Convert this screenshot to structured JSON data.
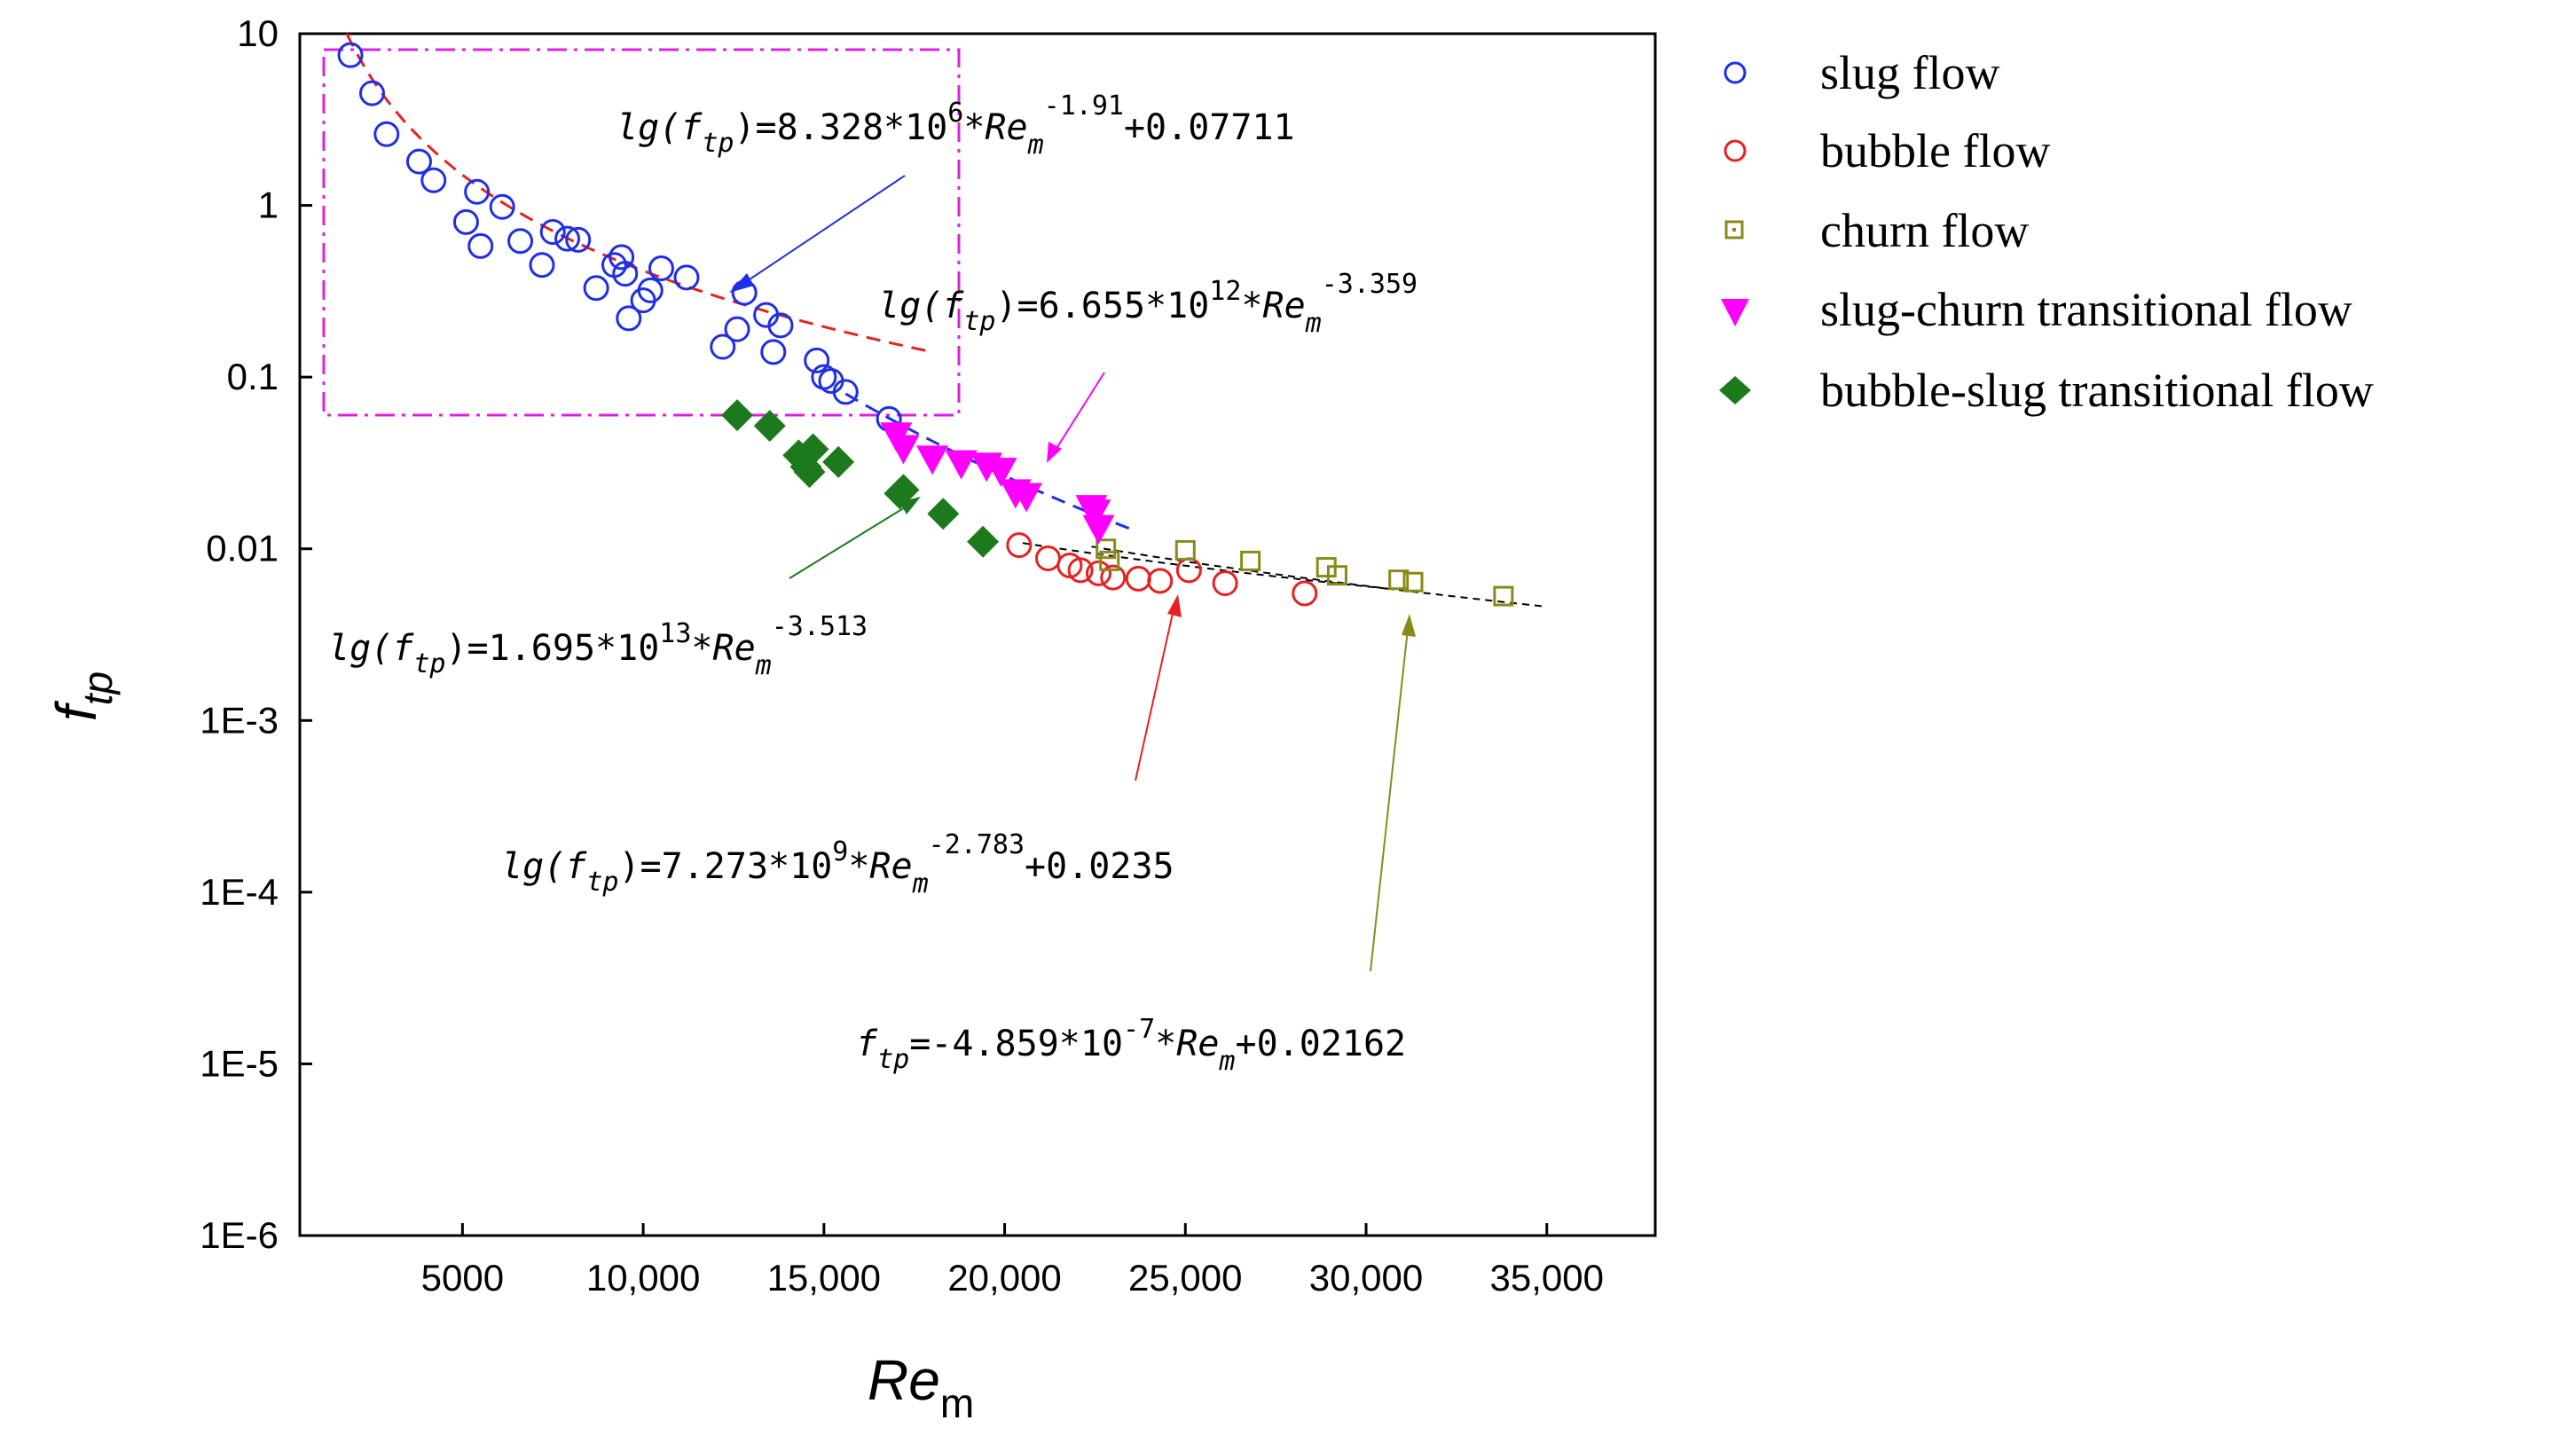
{
  "chart_data": {
    "type": "scatter",
    "title": "",
    "xlabel": {
      "main": "Re",
      "sub": "m"
    },
    "ylabel": {
      "main": "f",
      "sub": "tp"
    },
    "xlim": [
      500,
      38000
    ],
    "ylim": [
      1e-06,
      10
    ],
    "yscale": "log",
    "x_ticks": [
      5000,
      10000,
      15000,
      20000,
      25000,
      30000,
      35000
    ],
    "x_tick_labels": [
      "5000",
      "10,000",
      "15,000",
      "20,000",
      "25,000",
      "30,000",
      "35,000"
    ],
    "y_ticks": [
      10,
      1,
      0.1,
      0.01,
      0.001,
      0.0001,
      1e-05,
      1e-06
    ],
    "y_tick_labels": [
      "10",
      "1",
      "0.1",
      "0.01",
      "1E-3",
      "1E-4",
      "1E-5",
      "1E-6"
    ],
    "legend_position": "right outside",
    "series": [
      {
        "name": "slug flow",
        "marker": "circle-open",
        "color": "#1f2ee8",
        "points": [
          [
            1900,
            7.5
          ],
          [
            2500,
            4.5
          ],
          [
            2900,
            2.6
          ],
          [
            3800,
            1.8
          ],
          [
            4200,
            1.4
          ],
          [
            5400,
            1.2
          ],
          [
            5500,
            0.58
          ],
          [
            5100,
            0.8
          ],
          [
            6100,
            0.98
          ],
          [
            6600,
            0.62
          ],
          [
            7200,
            0.45
          ],
          [
            7500,
            0.7
          ],
          [
            7900,
            0.64
          ],
          [
            8200,
            0.63
          ],
          [
            8700,
            0.33
          ],
          [
            9200,
            0.45
          ],
          [
            9400,
            0.5
          ],
          [
            9500,
            0.4
          ],
          [
            9600,
            0.22
          ],
          [
            10000,
            0.28
          ],
          [
            10200,
            0.32
          ],
          [
            10500,
            0.43
          ],
          [
            11200,
            0.38
          ],
          [
            12200,
            0.15
          ],
          [
            12600,
            0.19
          ],
          [
            12800,
            0.31
          ],
          [
            13400,
            0.23
          ],
          [
            13600,
            0.14
          ],
          [
            13800,
            0.2
          ],
          [
            14800,
            0.125
          ],
          [
            15000,
            0.1
          ],
          [
            15200,
            0.095
          ],
          [
            15600,
            0.082
          ],
          [
            16800,
            0.057
          ]
        ]
      },
      {
        "name": "bubble flow",
        "marker": "circle-open",
        "color": "#e82020",
        "points": [
          [
            20400,
            0.0105
          ],
          [
            21200,
            0.0088
          ],
          [
            21800,
            0.008
          ],
          [
            22100,
            0.0075
          ],
          [
            22600,
            0.0072
          ],
          [
            23000,
            0.0068
          ],
          [
            23700,
            0.0067
          ],
          [
            24300,
            0.0065
          ],
          [
            25100,
            0.0075
          ],
          [
            26100,
            0.0063
          ],
          [
            28300,
            0.0055
          ]
        ]
      },
      {
        "name": "churn flow",
        "marker": "square-open",
        "color": "#8a8a1a",
        "points": [
          [
            22800,
            0.01
          ],
          [
            22900,
            0.0085
          ],
          [
            25000,
            0.0098
          ],
          [
            26800,
            0.0085
          ],
          [
            28900,
            0.0078
          ],
          [
            29200,
            0.007
          ],
          [
            30900,
            0.0066
          ],
          [
            31300,
            0.0064
          ],
          [
            33800,
            0.0053
          ]
        ]
      },
      {
        "name": "slug-churn transitional flow",
        "marker": "triangle-down",
        "color": "#ff00ff",
        "points": [
          [
            17000,
            0.045
          ],
          [
            17200,
            0.038
          ],
          [
            18000,
            0.033
          ],
          [
            18800,
            0.031
          ],
          [
            19500,
            0.03
          ],
          [
            19900,
            0.028
          ],
          [
            20300,
            0.021
          ],
          [
            20600,
            0.02
          ],
          [
            22400,
            0.017
          ],
          [
            22500,
            0.016
          ],
          [
            22600,
            0.013
          ]
        ]
      },
      {
        "name": "bubble-slug transitional flow",
        "marker": "diamond",
        "color": "#1c7a1c",
        "points": [
          [
            12600,
            0.06
          ],
          [
            13500,
            0.052
          ],
          [
            14300,
            0.035
          ],
          [
            14500,
            0.03
          ],
          [
            14600,
            0.028
          ],
          [
            14700,
            0.038
          ],
          [
            15400,
            0.032
          ],
          [
            17100,
            0.021
          ],
          [
            17200,
            0.022
          ],
          [
            18300,
            0.016
          ],
          [
            19400,
            0.011
          ]
        ]
      }
    ],
    "fits": [
      {
        "name": "slug flow fit",
        "color": "#e82020",
        "x_range": [
          1800,
          18000
        ],
        "y_start": 10,
        "y_end": 0.14
      },
      {
        "name": "slug-churn fit",
        "color": "#1f2ee8",
        "x_range": [
          15600,
          23500
        ],
        "y_start": 0.08,
        "y_end": 0.013
      },
      {
        "name": "bubble fit",
        "color": "#000000",
        "x_range": [
          20500,
          30800
        ],
        "y_start": 0.0108,
        "y_end": 0.0058
      },
      {
        "name": "churn fit",
        "color": "#000000",
        "x_range": [
          22400,
          35000
        ],
        "y_start": 0.0103,
        "y_end": 0.0046
      }
    ],
    "equations": [
      {
        "name": "slug",
        "prefix": "lg(f",
        "prefix_sub": "tp",
        "body": ")=8.328*10",
        "sup1": "6",
        "middle": "*Re",
        "sub2": "m",
        "sup2": "-1.91",
        "suffix": "+0.07711"
      },
      {
        "name": "slug-churn",
        "prefix": "lg(f",
        "prefix_sub": "tp",
        "body": ")=6.655*10",
        "sup1": "12",
        "middle": "*Re",
        "sub2": "m",
        "sup2": "-3.359",
        "suffix": ""
      },
      {
        "name": "bubble-slug",
        "prefix": "lg(f",
        "prefix_sub": "tp",
        "body": ")=1.695*10",
        "sup1": "13",
        "middle": "*Re",
        "sub2": "m",
        "sup2": "-3.513",
        "suffix": ""
      },
      {
        "name": "bubble",
        "prefix": "lg(f",
        "prefix_sub": "tp",
        "body": ")=7.273*10",
        "sup1": "9",
        "middle": "*Re",
        "sub2": "m",
        "sup2": "-2.783",
        "suffix": "+0.0235"
      },
      {
        "name": "churn",
        "prefix": "f",
        "prefix_sub": "tp",
        "body": "=-4.859*10",
        "sup1": "-7",
        "middle": "*Re",
        "sub2": "m",
        "sup2": "",
        "suffix": "+0.02162"
      }
    ]
  }
}
